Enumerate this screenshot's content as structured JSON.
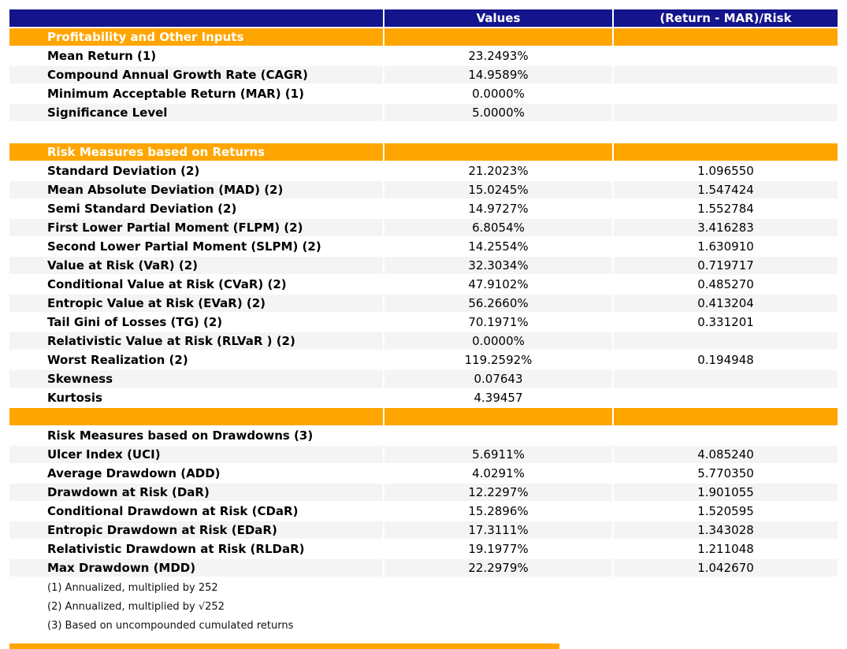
{
  "colors": {
    "header_bg": "#14148C",
    "section_bg": "#FFA500",
    "stripe_bg": "#F4F4F4"
  },
  "table": {
    "columns": [
      "",
      "Values",
      "(Return - MAR)/Risk"
    ],
    "rows": [
      {
        "type": "section",
        "label": "Profitability and Other Inputs",
        "value": "",
        "ratio": ""
      },
      {
        "type": "data",
        "label": "Mean Return (1)",
        "value": "23.2493%",
        "ratio": ""
      },
      {
        "type": "data",
        "label": "Compound Annual Growth Rate (CAGR)",
        "value": "14.9589%",
        "ratio": ""
      },
      {
        "type": "data",
        "label": "Minimum Acceptable Return (MAR) (1)",
        "value": "0.0000%",
        "ratio": ""
      },
      {
        "type": "data",
        "label": "Significance Level",
        "value": "5.0000%",
        "ratio": ""
      },
      {
        "type": "spacer",
        "label": "",
        "value": "",
        "ratio": ""
      },
      {
        "type": "section",
        "label": "Risk Measures based on Returns",
        "value": "",
        "ratio": ""
      },
      {
        "type": "data",
        "label": "Standard Deviation (2)",
        "value": "21.2023%",
        "ratio": "1.096550"
      },
      {
        "type": "data",
        "label": "Mean Absolute Deviation (MAD) (2)",
        "value": "15.0245%",
        "ratio": "1.547424"
      },
      {
        "type": "data",
        "label": "Semi Standard Deviation (2)",
        "value": "14.9727%",
        "ratio": "1.552784"
      },
      {
        "type": "data",
        "label": "First Lower Partial Moment (FLPM) (2)",
        "value": "6.8054%",
        "ratio": "3.416283"
      },
      {
        "type": "data",
        "label": "Second Lower Partial Moment (SLPM) (2)",
        "value": "14.2554%",
        "ratio": "1.630910"
      },
      {
        "type": "data",
        "label": "Value at Risk (VaR) (2)",
        "value": "32.3034%",
        "ratio": "0.719717"
      },
      {
        "type": "data",
        "label": "Conditional Value at Risk (CVaR) (2)",
        "value": "47.9102%",
        "ratio": "0.485270"
      },
      {
        "type": "data",
        "label": "Entropic Value at Risk (EVaR) (2)",
        "value": "56.2660%",
        "ratio": "0.413204"
      },
      {
        "type": "data",
        "label": "Tail Gini of Losses (TG) (2)",
        "value": "70.1971%",
        "ratio": "0.331201"
      },
      {
        "type": "data",
        "label": "Relativistic Value at Risk (RLVaR ) (2)",
        "value": "0.0000%",
        "ratio": ""
      },
      {
        "type": "data",
        "label": "Worst Realization (2)",
        "value": "119.2592%",
        "ratio": "0.194948"
      },
      {
        "type": "data",
        "label": "Skewness",
        "value": "0.07643",
        "ratio": ""
      },
      {
        "type": "data",
        "label": "Kurtosis",
        "value": "4.39457",
        "ratio": ""
      },
      {
        "type": "section",
        "label": "",
        "value": "",
        "ratio": ""
      },
      {
        "type": "data",
        "label": "Risk Measures based on Drawdowns (3)",
        "value": "",
        "ratio": ""
      },
      {
        "type": "data",
        "label": "Ulcer Index (UCI)",
        "value": "5.6911%",
        "ratio": "4.085240"
      },
      {
        "type": "data",
        "label": "Average Drawdown (ADD)",
        "value": "4.0291%",
        "ratio": "5.770350"
      },
      {
        "type": "data",
        "label": "Drawdown at Risk (DaR)",
        "value": "12.2297%",
        "ratio": "1.901055"
      },
      {
        "type": "data",
        "label": "Conditional Drawdown at Risk (CDaR)",
        "value": "15.2896%",
        "ratio": "1.520595"
      },
      {
        "type": "data",
        "label": "Entropic Drawdown at Risk (EDaR)",
        "value": "17.3111%",
        "ratio": "1.343028"
      },
      {
        "type": "data",
        "label": "Relativistic Drawdown at Risk (RLDaR)",
        "value": "19.1977%",
        "ratio": "1.211048"
      },
      {
        "type": "data",
        "label": "Max Drawdown (MDD)",
        "value": "22.2979%",
        "ratio": "1.042670"
      }
    ],
    "footnotes": [
      "(1) Annualized, multiplied by 252",
      "(2) Annualized, multiplied by √252",
      "(3) Based on uncompounded cumulated returns"
    ]
  }
}
